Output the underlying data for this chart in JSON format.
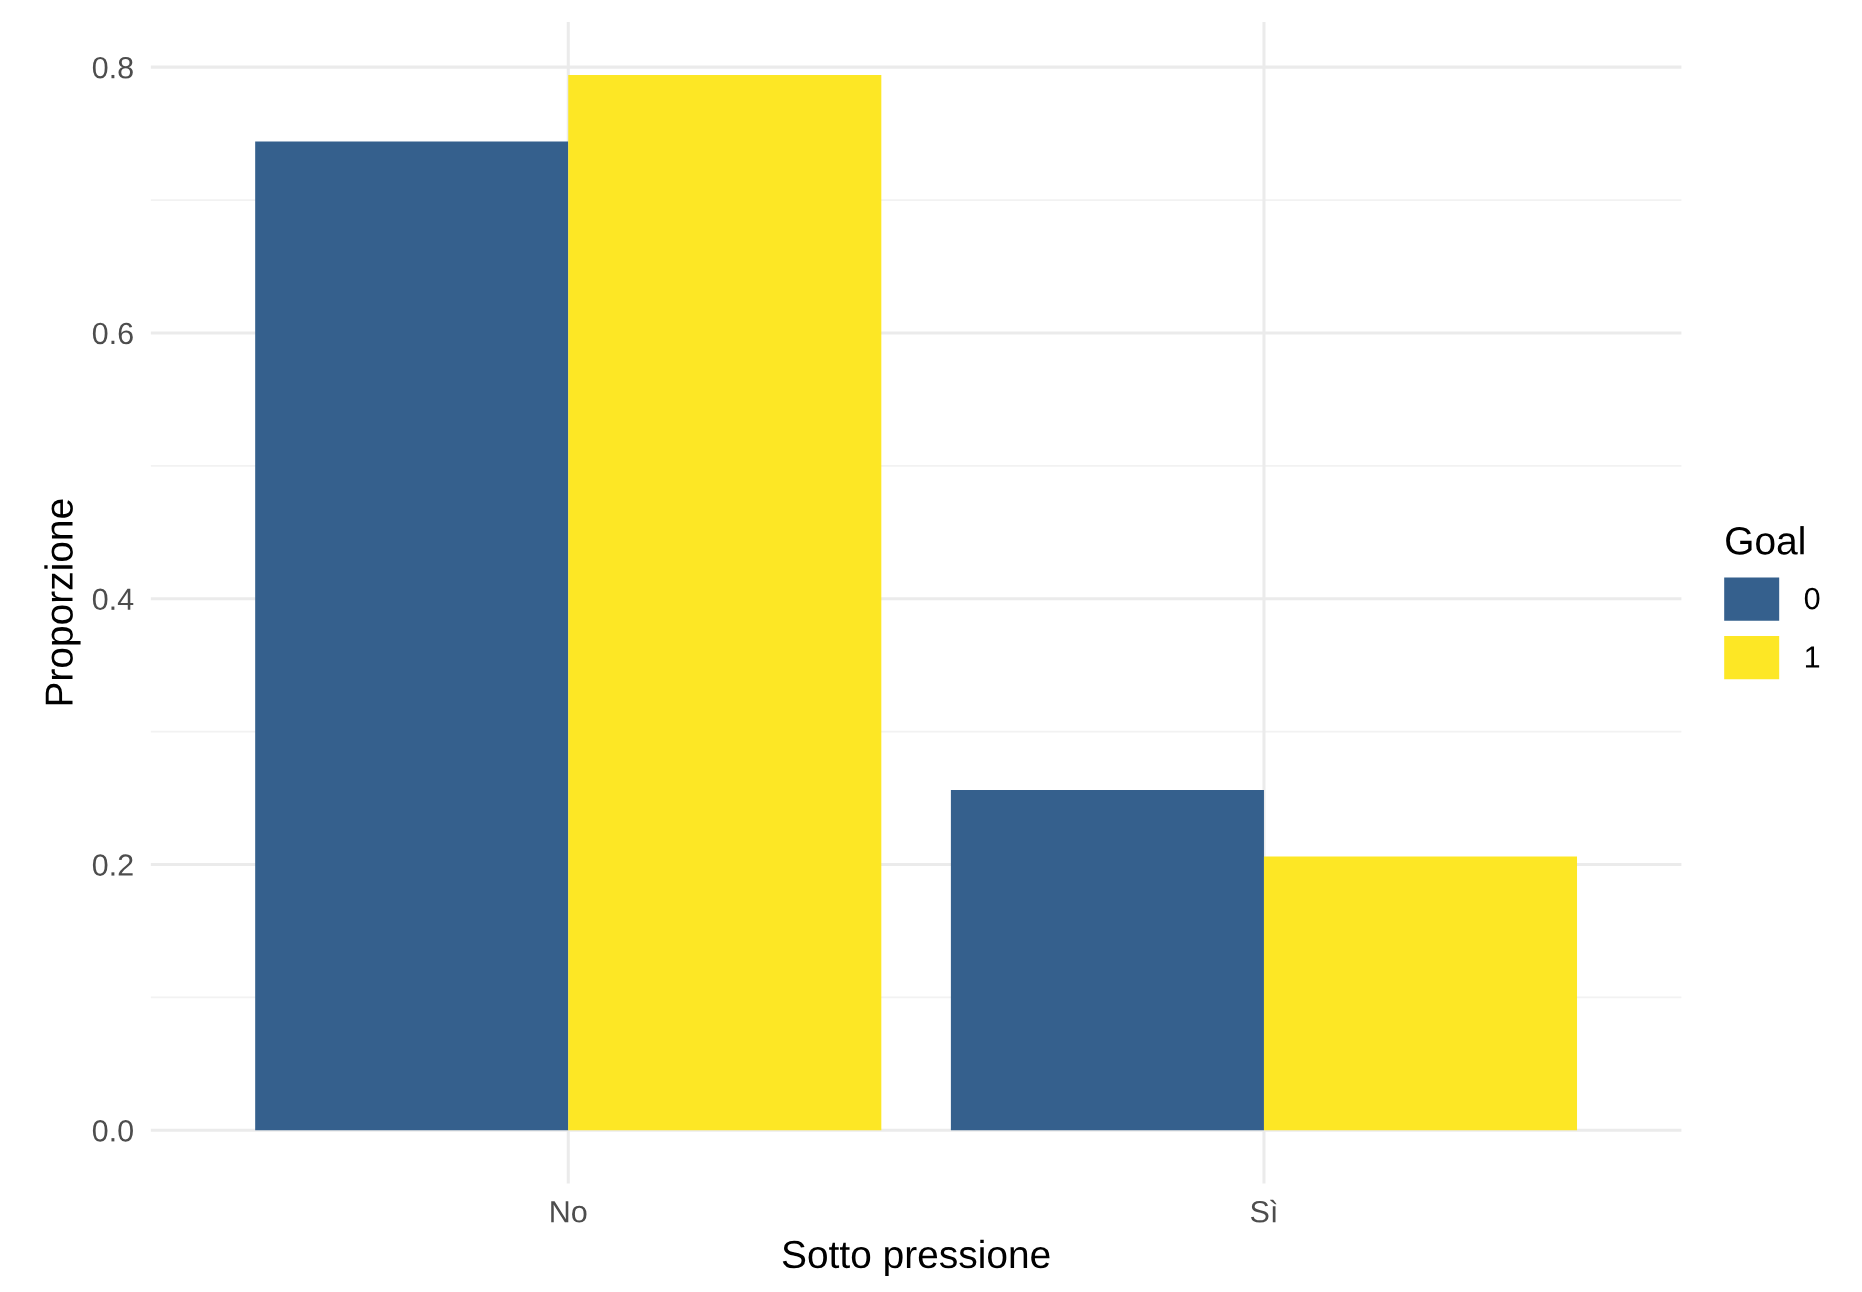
{
  "chart_data": {
    "type": "bar",
    "xlabel": "Sotto pressione",
    "ylabel": "Proporzione",
    "legend_title": "Goal",
    "categories": [
      "No",
      "Sì"
    ],
    "series": [
      {
        "name": "0",
        "color": "#35608d",
        "values": [
          0.744,
          0.256
        ]
      },
      {
        "name": "1",
        "color": "#fde725",
        "values": [
          0.794,
          0.206
        ]
      }
    ],
    "ylim": [
      -0.04,
      0.834
    ],
    "yticks": [
      {
        "value": 0,
        "label": "0.0"
      },
      0.2,
      0.4,
      0.6,
      0.8
    ],
    "grid": true,
    "legend": "right"
  }
}
